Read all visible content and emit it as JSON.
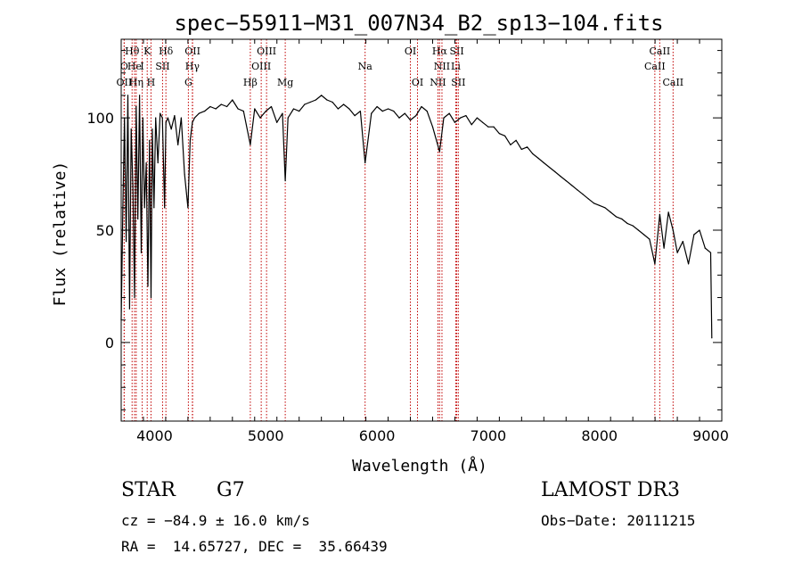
{
  "chart_data": {
    "type": "line",
    "title": "spec−55911−M31_007N34_B2_sp13−104.fits",
    "xlabel": "Wavelength (Å)",
    "ylabel": "Flux (relative)",
    "xlim": [
      3700,
      9100
    ],
    "ylim": [
      -35,
      135
    ],
    "xticks": [
      4000,
      5000,
      6000,
      7000,
      8000,
      9000
    ],
    "xtick_labels": [
      "4000",
      "5000",
      "6000",
      "7000",
      "8000",
      "9000"
    ],
    "yticks": [
      0,
      50,
      100
    ],
    "ytick_labels": [
      "0",
      "50",
      "100"
    ],
    "grid": false,
    "series": [
      {
        "name": "spectrum",
        "x": [
          3700,
          3715,
          3730,
          3745,
          3760,
          3775,
          3790,
          3805,
          3820,
          3835,
          3850,
          3865,
          3880,
          3895,
          3910,
          3925,
          3940,
          3955,
          3968,
          3980,
          3995,
          4010,
          4030,
          4050,
          4070,
          4090,
          4102,
          4120,
          4150,
          4180,
          4210,
          4240,
          4270,
          4300,
          4320,
          4340,
          4360,
          4400,
          4450,
          4500,
          4550,
          4600,
          4650,
          4700,
          4750,
          4800,
          4861,
          4900,
          4950,
          5000,
          5050,
          5100,
          5150,
          5175,
          5200,
          5250,
          5300,
          5350,
          5400,
          5450,
          5500,
          5550,
          5600,
          5650,
          5700,
          5750,
          5800,
          5850,
          5893,
          5950,
          6000,
          6050,
          6100,
          6150,
          6200,
          6250,
          6300,
          6350,
          6400,
          6450,
          6500,
          6563,
          6600,
          6650,
          6700,
          6750,
          6800,
          6850,
          6900,
          6950,
          7000,
          7050,
          7100,
          7150,
          7200,
          7250,
          7300,
          7350,
          7400,
          7450,
          7500,
          7550,
          7600,
          7650,
          7700,
          7750,
          7800,
          7850,
          7900,
          7950,
          8000,
          8050,
          8100,
          8150,
          8200,
          8250,
          8300,
          8350,
          8400,
          8450,
          8498,
          8542,
          8580,
          8620,
          8662,
          8700,
          8750,
          8800,
          8850,
          8900,
          8950,
          9000,
          9010
        ],
        "y": [
          10,
          60,
          100,
          45,
          110,
          15,
          95,
          70,
          20,
          105,
          55,
          110,
          40,
          100,
          60,
          80,
          25,
          90,
          20,
          95,
          60,
          100,
          80,
          102,
          100,
          60,
          98,
          100,
          95,
          101,
          88,
          100,
          75,
          60,
          90,
          98,
          100,
          102,
          103,
          105,
          104,
          106,
          105,
          108,
          104,
          103,
          88,
          104,
          100,
          103,
          105,
          98,
          102,
          72,
          100,
          104,
          103,
          106,
          107,
          108,
          110,
          108,
          107,
          104,
          106,
          104,
          101,
          103,
          80,
          102,
          105,
          103,
          104,
          103,
          100,
          102,
          99,
          101,
          105,
          103,
          96,
          85,
          100,
          102,
          98,
          100,
          101,
          97,
          100,
          98,
          96,
          96,
          93,
          92,
          88,
          90,
          86,
          87,
          84,
          82,
          80,
          78,
          76,
          74,
          72,
          70,
          68,
          66,
          64,
          62,
          61,
          60,
          58,
          56,
          55,
          53,
          52,
          50,
          48,
          46,
          35,
          57,
          42,
          58,
          50,
          40,
          45,
          35,
          48,
          50,
          42,
          40,
          2
        ]
      }
    ],
    "lines": [
      {
        "label": "Hθ",
        "x": 3798,
        "row": 1
      },
      {
        "label": "K",
        "x": 3934,
        "row": 1
      },
      {
        "label": "Hδ",
        "x": 4102,
        "row": 1
      },
      {
        "label": "OII",
        "x": 4342,
        "row": 1
      },
      {
        "label": "OIII",
        "x": 5007,
        "row": 1
      },
      {
        "label": "OI",
        "x": 6300,
        "row": 1
      },
      {
        "label": "Hα",
        "x": 6563,
        "row": 1
      },
      {
        "label": "SII",
        "x": 6717,
        "row": 1
      },
      {
        "label": "CaII",
        "x": 8542,
        "row": 1
      },
      {
        "label": "O",
        "x": 3727,
        "row": 2
      },
      {
        "label": "He",
        "x": 3820,
        "row": 2
      },
      {
        "label": "I",
        "x": 3889,
        "row": 2
      },
      {
        "label": "SII",
        "x": 4072,
        "row": 2
      },
      {
        "label": "Hγ",
        "x": 4340,
        "row": 2
      },
      {
        "label": "OIII",
        "x": 4959,
        "row": 2
      },
      {
        "label": "Na",
        "x": 5893,
        "row": 2
      },
      {
        "label": "NII",
        "x": 6584,
        "row": 2
      },
      {
        "label": "Li",
        "x": 6708,
        "row": 2
      },
      {
        "label": "CaII",
        "x": 8498,
        "row": 2
      },
      {
        "label": "OII",
        "x": 3727,
        "row": 3
      },
      {
        "label": "Hη",
        "x": 3835,
        "row": 3
      },
      {
        "label": "H",
        "x": 3968,
        "row": 3
      },
      {
        "label": "G",
        "x": 4304,
        "row": 3
      },
      {
        "label": "Hβ",
        "x": 4861,
        "row": 3
      },
      {
        "label": "Mg",
        "x": 5175,
        "row": 3
      },
      {
        "label": "OI",
        "x": 6364,
        "row": 3
      },
      {
        "label": "NII",
        "x": 6548,
        "row": 3
      },
      {
        "label": "SII",
        "x": 6731,
        "row": 3
      },
      {
        "label": "CaII",
        "x": 8662,
        "row": 3
      }
    ]
  },
  "info": {
    "class_label": "STAR",
    "subclass": "G7",
    "survey": "LAMOST DR3",
    "velocity": "cz = −84.9 ± 16.0 km/s",
    "obs_date": "Obs−Date: 20111215",
    "coords": "RA =  14.65727, DEC =  35.66439"
  },
  "colors": {
    "spectrum": "#000000",
    "line_markers": "#c00000",
    "axes": "#000000"
  }
}
